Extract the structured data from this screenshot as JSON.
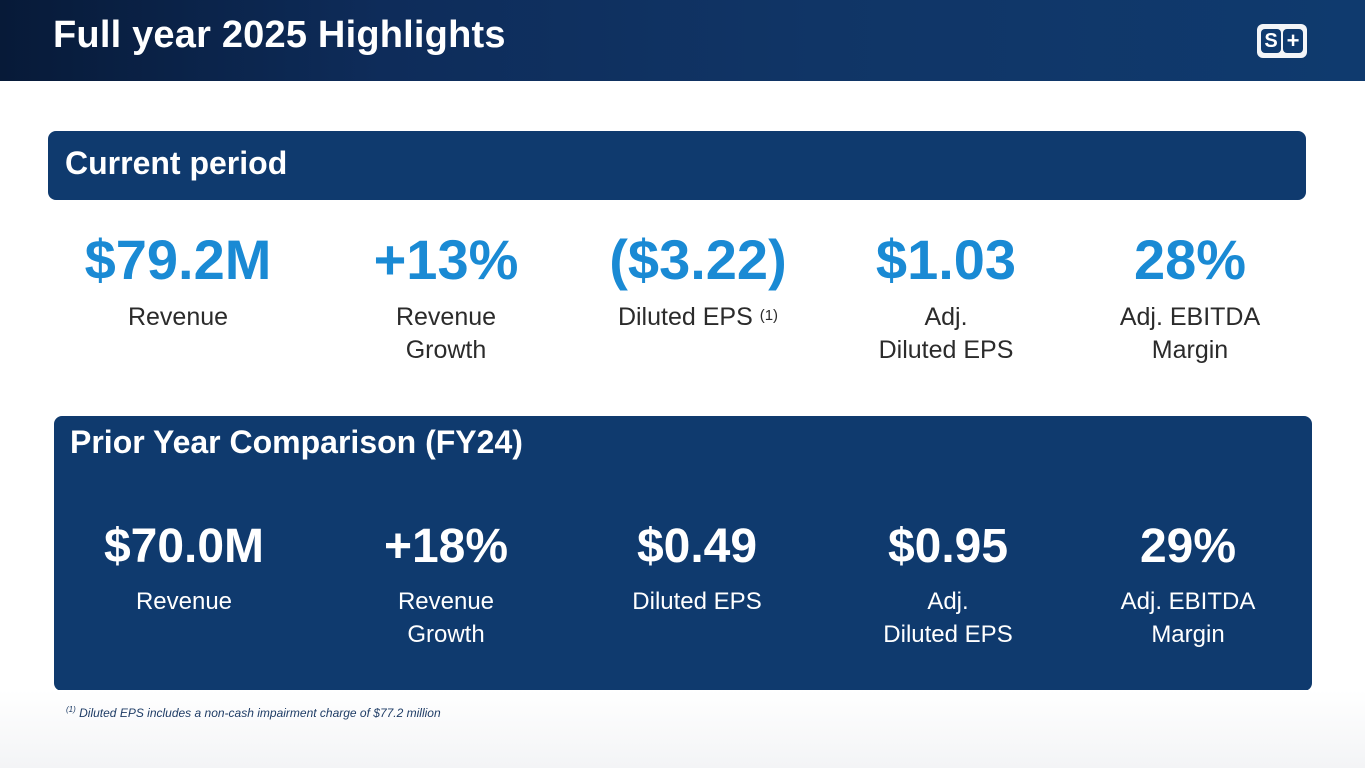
{
  "header": {
    "title": "Full year 2025 Highlights",
    "logo_s": "S",
    "logo_plus": "+"
  },
  "current": {
    "title": "Current period",
    "metrics": [
      {
        "value": "$79.2M",
        "label_1": "Revenue",
        "label_2": ""
      },
      {
        "value": "+13%",
        "label_1": "Revenue",
        "label_2": "Growth"
      },
      {
        "value": "($3.22)",
        "label_1": "Diluted EPS",
        "label_2": "",
        "footnote_ref": "(1)"
      },
      {
        "value": "$1.03",
        "label_1": "Adj.",
        "label_2": "Diluted EPS"
      },
      {
        "value": "28%",
        "label_1": "Adj. EBITDA",
        "label_2": "Margin"
      }
    ]
  },
  "prior": {
    "title": "Prior Year Comparison (FY24)",
    "metrics": [
      {
        "value": "$70.0M",
        "label_1": "Revenue",
        "label_2": ""
      },
      {
        "value": "+18%",
        "label_1": "Revenue",
        "label_2": "Growth"
      },
      {
        "value": "$0.49",
        "label_1": "Diluted EPS",
        "label_2": ""
      },
      {
        "value": "$0.95",
        "label_1": "Adj.",
        "label_2": "Diluted EPS"
      },
      {
        "value": "29%",
        "label_1": "Adj. EBITDA",
        "label_2": "Margin"
      }
    ]
  },
  "footnote": {
    "marker": "(1)",
    "text": "Diluted EPS includes a non-cash impairment charge of $77.2 million"
  },
  "colors": {
    "navy": "#0f3a6e",
    "accent_blue": "#1a8ad4"
  }
}
